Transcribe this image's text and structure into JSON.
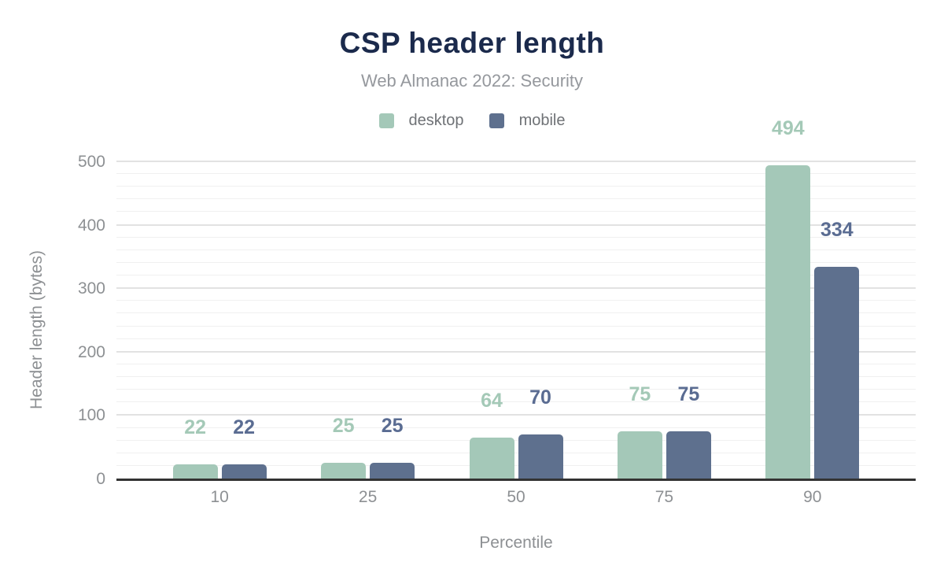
{
  "chart": {
    "title": "CSP header length",
    "subtitle": "Web Almanac 2022: Security",
    "x_axis_title": "Percentile",
    "y_axis_title": "Header length (bytes)"
  },
  "chart_data": {
    "type": "bar",
    "title": "CSP header length",
    "subtitle": "Web Almanac 2022: Security",
    "categories": [
      "10",
      "25",
      "50",
      "75",
      "90"
    ],
    "series": [
      {
        "name": "desktop",
        "values": [
          22,
          25,
          64,
          75,
          494
        ],
        "color": "#a4c8b8",
        "label_color": "#a4c9b7"
      },
      {
        "name": "mobile",
        "values": [
          22,
          25,
          70,
          75,
          334
        ],
        "color": "#5e708e",
        "label_color": "#5a6c92"
      }
    ],
    "xlabel": "Percentile",
    "ylabel": "Header length (bytes)",
    "ylim": [
      0,
      500
    ],
    "y_ticks": [
      0,
      100,
      200,
      300,
      400,
      500
    ],
    "y_major_step": 100,
    "y_minor_step": 20,
    "grid": true,
    "legend_position": "top",
    "data_labels": true
  },
  "colors": {
    "title": "#1b2a4c",
    "subtitle": "#95989d",
    "axis_text": "#8d9093",
    "legend_text": "#6f7276",
    "axis_line": "#333333",
    "grid_major": "#e2e2e2",
    "grid_minor": "#f0f0f0",
    "background": "#ffffff"
  }
}
